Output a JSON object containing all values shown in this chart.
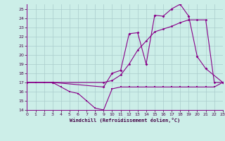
{
  "xlabel": "Windchill (Refroidissement éolien,°C)",
  "bg_color": "#cceee8",
  "grid_color": "#aacccc",
  "line_color": "#880088",
  "xlim": [
    0,
    23
  ],
  "ylim": [
    14,
    25.5
  ],
  "yticks": [
    14,
    15,
    16,
    17,
    18,
    19,
    20,
    21,
    22,
    23,
    24,
    25
  ],
  "xticks": [
    0,
    1,
    2,
    3,
    4,
    5,
    6,
    7,
    8,
    9,
    10,
    11,
    12,
    13,
    14,
    15,
    16,
    17,
    18,
    19,
    20,
    21,
    22,
    23
  ],
  "line1_x": [
    0,
    1,
    2,
    3,
    4,
    5,
    6,
    7,
    8,
    9,
    10,
    11,
    12,
    13,
    14,
    15,
    16,
    17,
    18,
    19,
    20,
    21,
    22,
    23
  ],
  "line1_y": [
    17,
    17,
    17,
    17,
    16.5,
    16.0,
    15.8,
    15.0,
    14.2,
    14.0,
    16.3,
    16.5,
    16.5,
    16.5,
    16.5,
    16.5,
    16.5,
    16.5,
    16.5,
    16.5,
    16.5,
    16.5,
    16.5,
    17.0
  ],
  "line2_x": [
    0,
    3,
    9,
    10,
    11,
    12,
    13,
    14,
    15,
    16,
    17,
    18,
    19,
    20,
    21,
    23
  ],
  "line2_y": [
    17,
    17,
    16.5,
    18.0,
    18.3,
    22.3,
    22.4,
    19.0,
    24.3,
    24.2,
    25.0,
    25.5,
    24.2,
    19.8,
    18.5,
    17.0
  ],
  "line3_x": [
    0,
    3,
    9,
    10,
    11,
    12,
    13,
    14,
    15,
    16,
    17,
    18,
    19,
    20,
    21,
    22,
    23
  ],
  "line3_y": [
    17,
    17,
    17.0,
    17.2,
    17.8,
    19.0,
    20.5,
    21.5,
    22.5,
    22.8,
    23.1,
    23.5,
    23.8,
    23.8,
    23.8,
    17.0,
    17.0
  ]
}
